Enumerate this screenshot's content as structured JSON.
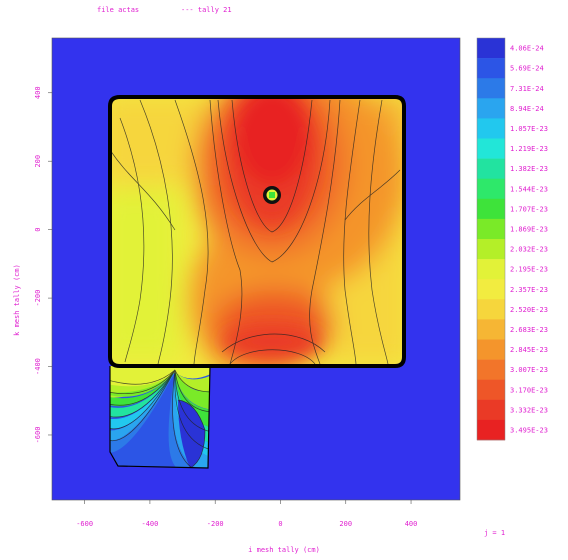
{
  "header": {
    "file": "file actas",
    "tally": "--- tally   21"
  },
  "plane_label": "j =   1",
  "chart_data": {
    "type": "heatmap",
    "title": "",
    "xlabel": "i mesh tally (cm)",
    "ylabel": "k mesh tally (cm)",
    "xlim": [
      -700,
      550
    ],
    "ylim": [
      -790,
      560
    ],
    "xticks": [
      -600,
      -400,
      -200,
      0,
      200,
      400
    ],
    "yticks": [
      -600,
      -400,
      -200,
      0,
      200,
      400
    ],
    "background_color": "#3333ee",
    "colorbar": {
      "labels": [
        "4.06E-24",
        "5.69E-24",
        "7.31E-24",
        "8.94E-24",
        "1.057E-23",
        "1.219E-23",
        "1.382E-23",
        "1.544E-23",
        "1.707E-23",
        "1.869E-23",
        "2.032E-23",
        "2.195E-23",
        "2.357E-23",
        "2.520E-23",
        "2.683E-23",
        "2.845E-23",
        "3.007E-23",
        "3.170E-23",
        "3.332E-23",
        "3.495E-23"
      ],
      "colors": [
        "#2a33d6",
        "#2c55e6",
        "#2c7ae8",
        "#2aa5ef",
        "#22c8ee",
        "#22e6d8",
        "#22e3a0",
        "#2ee86a",
        "#3ee33a",
        "#7aea28",
        "#b4ef28",
        "#e2f238",
        "#f2ec40",
        "#f6d63c",
        "#f6b634",
        "#f4952c",
        "#f2752a",
        "#ee5628",
        "#ea3a26",
        "#e82222"
      ]
    },
    "regions": [
      {
        "name": "room",
        "x": [
          -490,
          400
        ],
        "y": [
          -390,
          400
        ],
        "value_range": [
          "2.357E-23",
          "3.495E-23"
        ]
      },
      {
        "name": "alcove",
        "x": [
          -490,
          -190
        ],
        "y": [
          -700,
          -390
        ],
        "value_range": [
          "4.06E-24",
          "2.357E-23"
        ]
      },
      {
        "name": "source",
        "x": [
          -10,
          10
        ],
        "y": [
          95,
          115
        ],
        "value_range": [
          "1.869E-23",
          "2.032E-23"
        ]
      }
    ]
  }
}
